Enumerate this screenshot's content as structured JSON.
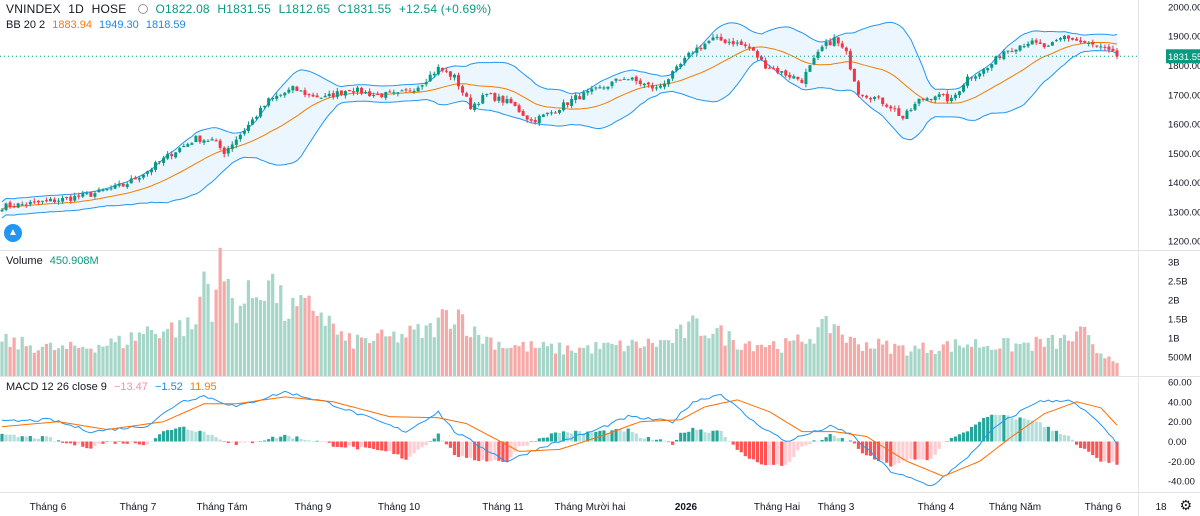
{
  "header": {
    "symbol": "VNINDEX",
    "interval": "1D",
    "exchange": "HOSE",
    "open": "O1822.08",
    "high": "H1831.55",
    "low": "L1812.65",
    "close": "C1831.55",
    "change": "+12.54 (+0.69%)"
  },
  "bb_legend": {
    "label": "BB 20 2",
    "basis": "1883.94",
    "upper": "1949.30",
    "lower": "1818.59"
  },
  "volume_legend": {
    "label": "Volume",
    "value": "450.908M"
  },
  "macd_legend": {
    "label": "MACD 12 26 close 9",
    "hist": "−13.47",
    "macd": "−1.52",
    "signal": "11.95"
  },
  "price_label": "1831.55",
  "colors": {
    "up": "#089981",
    "down": "#f23645",
    "upper_band": "#2196f3",
    "basis": "#f57c00",
    "macd_line": "#2196f3",
    "signal_line": "#ff6d00",
    "band_fill": "#e3f2fd"
  },
  "icons": {
    "settings": "gear-icon",
    "logo": "tradingview-logo-icon"
  },
  "chart_data": {
    "type": "candlestick",
    "x_labels": [
      "Tháng 6",
      "Tháng 7",
      "Tháng Tám",
      "Tháng 9",
      "Tháng 10",
      "Tháng 11",
      "Tháng Mười hai",
      "2026",
      "Tháng Hai",
      "Tháng 3",
      "Tháng 4",
      "Tháng Năm",
      "Tháng 6",
      "18"
    ],
    "price_axis": {
      "ticks": [
        "2000.00",
        "1900.00",
        "1800.00",
        "1700.00",
        "1600.00",
        "1500.00",
        "1400.00",
        "1300.00",
        "1200.00"
      ],
      "ylim": [
        1170,
        2010
      ]
    },
    "volume_axis": {
      "ticks": [
        "3B",
        "2.5B",
        "2B",
        "1.5B",
        "1B",
        "500M"
      ],
      "ylim": [
        0,
        3000
      ]
    },
    "macd_axis": {
      "ticks": [
        "60.00",
        "40.00",
        "20.00",
        "0.00",
        "-20.00",
        "-40.00"
      ],
      "ylim": [
        -47,
        60
      ]
    },
    "close_anchors": [
      [
        0,
        1318
      ],
      [
        8,
        1330
      ],
      [
        16,
        1345
      ],
      [
        22,
        1360
      ],
      [
        30,
        1390
      ],
      [
        36,
        1440
      ],
      [
        42,
        1500
      ],
      [
        48,
        1550
      ],
      [
        52,
        1545
      ],
      [
        55,
        1505
      ],
      [
        60,
        1580
      ],
      [
        66,
        1680
      ],
      [
        72,
        1720
      ],
      [
        76,
        1700
      ],
      [
        80,
        1690
      ],
      [
        86,
        1720
      ],
      [
        92,
        1700
      ],
      [
        98,
        1700
      ],
      [
        103,
        1730
      ],
      [
        108,
        1790
      ],
      [
        112,
        1760
      ],
      [
        116,
        1660
      ],
      [
        120,
        1700
      ],
      [
        126,
        1670
      ],
      [
        131,
        1610
      ],
      [
        136,
        1640
      ],
      [
        142,
        1690
      ],
      [
        148,
        1720
      ],
      [
        154,
        1760
      ],
      [
        158,
        1740
      ],
      [
        162,
        1720
      ],
      [
        166,
        1770
      ],
      [
        171,
        1850
      ],
      [
        176,
        1890
      ],
      [
        181,
        1880
      ],
      [
        185,
        1860
      ],
      [
        189,
        1800
      ],
      [
        194,
        1770
      ],
      [
        198,
        1750
      ],
      [
        203,
        1860
      ],
      [
        206,
        1890
      ],
      [
        209,
        1840
      ],
      [
        212,
        1710
      ],
      [
        216,
        1690
      ],
      [
        220,
        1660
      ],
      [
        223,
        1620
      ],
      [
        227,
        1680
      ],
      [
        231,
        1700
      ],
      [
        235,
        1680
      ],
      [
        239,
        1760
      ],
      [
        244,
        1790
      ],
      [
        248,
        1850
      ],
      [
        254,
        1880
      ],
      [
        259,
        1860
      ],
      [
        263,
        1900
      ],
      [
        267,
        1880
      ],
      [
        272,
        1860
      ],
      [
        276,
        1832
      ]
    ],
    "volume_anchors": [
      [
        0,
        900
      ],
      [
        15,
        700
      ],
      [
        30,
        900
      ],
      [
        36,
        1200
      ],
      [
        48,
        1300
      ],
      [
        50,
        2800
      ],
      [
        52,
        1900
      ],
      [
        54,
        2800
      ],
      [
        58,
        1800
      ],
      [
        63,
        2200
      ],
      [
        66,
        2600
      ],
      [
        70,
        1700
      ],
      [
        78,
        1800
      ],
      [
        85,
        900
      ],
      [
        96,
        1000
      ],
      [
        106,
        1200
      ],
      [
        110,
        1600
      ],
      [
        113,
        1700
      ],
      [
        117,
        1100
      ],
      [
        125,
        800
      ],
      [
        140,
        700
      ],
      [
        155,
        800
      ],
      [
        165,
        900
      ],
      [
        171,
        1300
      ],
      [
        176,
        1200
      ],
      [
        182,
        900
      ],
      [
        195,
        800
      ],
      [
        203,
        1200
      ],
      [
        206,
        1400
      ],
      [
        210,
        900
      ],
      [
        225,
        700
      ],
      [
        240,
        850
      ],
      [
        250,
        800
      ],
      [
        262,
        900
      ],
      [
        268,
        1100
      ],
      [
        270,
        700
      ],
      [
        276,
        451
      ]
    ],
    "macd_anchors": [
      [
        0,
        20
      ],
      [
        12,
        22
      ],
      [
        22,
        10
      ],
      [
        36,
        16
      ],
      [
        44,
        40
      ],
      [
        50,
        46
      ],
      [
        58,
        35
      ],
      [
        70,
        50
      ],
      [
        80,
        40
      ],
      [
        92,
        22
      ],
      [
        100,
        10
      ],
      [
        108,
        30
      ],
      [
        112,
        10
      ],
      [
        125,
        -20
      ],
      [
        134,
        -5
      ],
      [
        146,
        10
      ],
      [
        155,
        25
      ],
      [
        166,
        20
      ],
      [
        171,
        40
      ],
      [
        178,
        48
      ],
      [
        186,
        20
      ],
      [
        194,
        0
      ],
      [
        205,
        15
      ],
      [
        210,
        8
      ],
      [
        220,
        -30
      ],
      [
        230,
        -45
      ],
      [
        238,
        -20
      ],
      [
        246,
        15
      ],
      [
        256,
        40
      ],
      [
        264,
        42
      ],
      [
        270,
        25
      ],
      [
        276,
        -2
      ]
    ],
    "signal_anchors": [
      [
        0,
        15
      ],
      [
        14,
        20
      ],
      [
        26,
        12
      ],
      [
        40,
        20
      ],
      [
        50,
        38
      ],
      [
        58,
        38
      ],
      [
        70,
        45
      ],
      [
        82,
        40
      ],
      [
        96,
        25
      ],
      [
        108,
        24
      ],
      [
        115,
        18
      ],
      [
        128,
        -10
      ],
      [
        138,
        -8
      ],
      [
        148,
        5
      ],
      [
        158,
        20
      ],
      [
        168,
        22
      ],
      [
        174,
        35
      ],
      [
        182,
        42
      ],
      [
        190,
        30
      ],
      [
        198,
        10
      ],
      [
        206,
        10
      ],
      [
        214,
        5
      ],
      [
        224,
        -20
      ],
      [
        233,
        -35
      ],
      [
        242,
        -20
      ],
      [
        250,
        5
      ],
      [
        258,
        28
      ],
      [
        266,
        40
      ],
      [
        272,
        34
      ],
      [
        277,
        12
      ]
    ]
  }
}
